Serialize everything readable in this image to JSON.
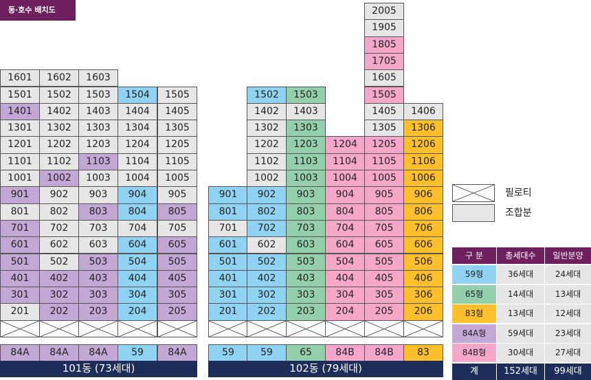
{
  "title": "동·호수 배치도",
  "colors": {
    "grey": "#e6e6e6",
    "purple": "#c3a8d6",
    "blue": "#8fd2f2",
    "green": "#93cfaa",
    "pink": "#f4a7c8",
    "yellow": "#fdbf2b",
    "navy": "#1c2d5a",
    "header": "#6e1f5e"
  },
  "units": [
    {
      "label": "1601",
      "col": 0,
      "row": 4,
      "color": "grey"
    },
    {
      "label": "1602",
      "col": 1,
      "row": 4,
      "color": "grey"
    },
    {
      "label": "1603",
      "col": 2,
      "row": 4,
      "color": "grey"
    },
    {
      "label": "1501",
      "col": 0,
      "row": 5,
      "color": "grey"
    },
    {
      "label": "1502",
      "col": 1,
      "row": 5,
      "color": "grey"
    },
    {
      "label": "1503",
      "col": 2,
      "row": 5,
      "color": "grey"
    },
    {
      "label": "1504",
      "col": 3,
      "row": 5,
      "color": "blue"
    },
    {
      "label": "1505",
      "col": 4,
      "row": 5,
      "color": "grey"
    },
    {
      "label": "1401",
      "col": 0,
      "row": 6,
      "color": "purple"
    },
    {
      "label": "1402",
      "col": 1,
      "row": 6,
      "color": "grey"
    },
    {
      "label": "1403",
      "col": 2,
      "row": 6,
      "color": "grey"
    },
    {
      "label": "1404",
      "col": 3,
      "row": 6,
      "color": "grey"
    },
    {
      "label": "1405",
      "col": 4,
      "row": 6,
      "color": "grey"
    },
    {
      "label": "1301",
      "col": 0,
      "row": 7,
      "color": "grey"
    },
    {
      "label": "1302",
      "col": 1,
      "row": 7,
      "color": "grey"
    },
    {
      "label": "1303",
      "col": 2,
      "row": 7,
      "color": "grey"
    },
    {
      "label": "1304",
      "col": 3,
      "row": 7,
      "color": "grey"
    },
    {
      "label": "1305",
      "col": 4,
      "row": 7,
      "color": "grey"
    },
    {
      "label": "1201",
      "col": 0,
      "row": 8,
      "color": "grey"
    },
    {
      "label": "1202",
      "col": 1,
      "row": 8,
      "color": "grey"
    },
    {
      "label": "1203",
      "col": 2,
      "row": 8,
      "color": "grey"
    },
    {
      "label": "1204",
      "col": 3,
      "row": 8,
      "color": "grey"
    },
    {
      "label": "1205",
      "col": 4,
      "row": 8,
      "color": "grey"
    },
    {
      "label": "1101",
      "col": 0,
      "row": 9,
      "color": "grey"
    },
    {
      "label": "1102",
      "col": 1,
      "row": 9,
      "color": "grey"
    },
    {
      "label": "1103",
      "col": 2,
      "row": 9,
      "color": "purple"
    },
    {
      "label": "1104",
      "col": 3,
      "row": 9,
      "color": "grey"
    },
    {
      "label": "1105",
      "col": 4,
      "row": 9,
      "color": "grey"
    },
    {
      "label": "1001",
      "col": 0,
      "row": 10,
      "color": "grey"
    },
    {
      "label": "1002",
      "col": 1,
      "row": 10,
      "color": "purple"
    },
    {
      "label": "1003",
      "col": 2,
      "row": 10,
      "color": "grey"
    },
    {
      "label": "1004",
      "col": 3,
      "row": 10,
      "color": "grey"
    },
    {
      "label": "1005",
      "col": 4,
      "row": 10,
      "color": "grey"
    },
    {
      "label": "901",
      "col": 0,
      "row": 11,
      "color": "purple"
    },
    {
      "label": "902",
      "col": 1,
      "row": 11,
      "color": "grey"
    },
    {
      "label": "903",
      "col": 2,
      "row": 11,
      "color": "grey"
    },
    {
      "label": "904",
      "col": 3,
      "row": 11,
      "color": "blue"
    },
    {
      "label": "905",
      "col": 4,
      "row": 11,
      "color": "grey"
    },
    {
      "label": "801",
      "col": 0,
      "row": 12,
      "color": "grey"
    },
    {
      "label": "802",
      "col": 1,
      "row": 12,
      "color": "grey"
    },
    {
      "label": "803",
      "col": 2,
      "row": 12,
      "color": "purple"
    },
    {
      "label": "804",
      "col": 3,
      "row": 12,
      "color": "blue"
    },
    {
      "label": "805",
      "col": 4,
      "row": 12,
      "color": "purple"
    },
    {
      "label": "701",
      "col": 0,
      "row": 13,
      "color": "purple"
    },
    {
      "label": "702",
      "col": 1,
      "row": 13,
      "color": "grey"
    },
    {
      "label": "703",
      "col": 2,
      "row": 13,
      "color": "grey"
    },
    {
      "label": "704",
      "col": 3,
      "row": 13,
      "color": "grey"
    },
    {
      "label": "705",
      "col": 4,
      "row": 13,
      "color": "grey"
    },
    {
      "label": "601",
      "col": 0,
      "row": 14,
      "color": "purple"
    },
    {
      "label": "602",
      "col": 1,
      "row": 14,
      "color": "grey"
    },
    {
      "label": "603",
      "col": 2,
      "row": 14,
      "color": "grey"
    },
    {
      "label": "604",
      "col": 3,
      "row": 14,
      "color": "blue"
    },
    {
      "label": "605",
      "col": 4,
      "row": 14,
      "color": "purple"
    },
    {
      "label": "501",
      "col": 0,
      "row": 15,
      "color": "purple"
    },
    {
      "label": "502",
      "col": 1,
      "row": 15,
      "color": "grey"
    },
    {
      "label": "503",
      "col": 2,
      "row": 15,
      "color": "purple"
    },
    {
      "label": "504",
      "col": 3,
      "row": 15,
      "color": "blue"
    },
    {
      "label": "505",
      "col": 4,
      "row": 15,
      "color": "purple"
    },
    {
      "label": "401",
      "col": 0,
      "row": 16,
      "color": "purple"
    },
    {
      "label": "402",
      "col": 1,
      "row": 16,
      "color": "purple"
    },
    {
      "label": "403",
      "col": 2,
      "row": 16,
      "color": "purple"
    },
    {
      "label": "404",
      "col": 3,
      "row": 16,
      "color": "blue"
    },
    {
      "label": "405",
      "col": 4,
      "row": 16,
      "color": "purple"
    },
    {
      "label": "301",
      "col": 0,
      "row": 17,
      "color": "purple"
    },
    {
      "label": "302",
      "col": 1,
      "row": 17,
      "color": "purple"
    },
    {
      "label": "303",
      "col": 2,
      "row": 17,
      "color": "purple"
    },
    {
      "label": "304",
      "col": 3,
      "row": 17,
      "color": "blue"
    },
    {
      "label": "305",
      "col": 4,
      "row": 17,
      "color": "purple"
    },
    {
      "label": "201",
      "col": 0,
      "row": 18,
      "color": "grey"
    },
    {
      "label": "202",
      "col": 1,
      "row": 18,
      "color": "purple"
    },
    {
      "label": "203",
      "col": 2,
      "row": 18,
      "color": "purple"
    },
    {
      "label": "204",
      "col": 3,
      "row": 18,
      "color": "blue"
    },
    {
      "label": "205",
      "col": 4,
      "row": 18,
      "color": "purple"
    },
    {
      "label": "2005",
      "col": 9,
      "row": 0,
      "color": "grey"
    },
    {
      "label": "1905",
      "col": 9,
      "row": 1,
      "color": "grey"
    },
    {
      "label": "1805",
      "col": 9,
      "row": 2,
      "color": "pink"
    },
    {
      "label": "1705",
      "col": 9,
      "row": 3,
      "color": "pink"
    },
    {
      "label": "1605",
      "col": 9,
      "row": 4,
      "color": "grey"
    },
    {
      "label": "1502",
      "col": 6,
      "row": 5,
      "color": "blue"
    },
    {
      "label": "1503",
      "col": 7,
      "row": 5,
      "color": "green"
    },
    {
      "label": "1505",
      "col": 9,
      "row": 5,
      "color": "pink"
    },
    {
      "label": "1402",
      "col": 6,
      "row": 6,
      "color": "grey"
    },
    {
      "label": "1403",
      "col": 7,
      "row": 6,
      "color": "grey"
    },
    {
      "label": "1405",
      "col": 9,
      "row": 6,
      "color": "grey"
    },
    {
      "label": "1406",
      "col": 10,
      "row": 6,
      "color": "grey"
    },
    {
      "label": "1302",
      "col": 6,
      "row": 7,
      "color": "grey"
    },
    {
      "label": "1303",
      "col": 7,
      "row": 7,
      "color": "green"
    },
    {
      "label": "1305",
      "col": 9,
      "row": 7,
      "color": "grey"
    },
    {
      "label": "1306",
      "col": 10,
      "row": 7,
      "color": "yellow"
    },
    {
      "label": "1202",
      "col": 6,
      "row": 8,
      "color": "grey"
    },
    {
      "label": "1203",
      "col": 7,
      "row": 8,
      "color": "green"
    },
    {
      "label": "1204",
      "col": 8,
      "row": 8,
      "color": "pink"
    },
    {
      "label": "1205",
      "col": 9,
      "row": 8,
      "color": "pink"
    },
    {
      "label": "1206",
      "col": 10,
      "row": 8,
      "color": "yellow"
    },
    {
      "label": "1102",
      "col": 6,
      "row": 9,
      "color": "grey"
    },
    {
      "label": "1103",
      "col": 7,
      "row": 9,
      "color": "green"
    },
    {
      "label": "1104",
      "col": 8,
      "row": 9,
      "color": "pink"
    },
    {
      "label": "1105",
      "col": 9,
      "row": 9,
      "color": "pink"
    },
    {
      "label": "1106",
      "col": 10,
      "row": 9,
      "color": "yellow"
    },
    {
      "label": "1002",
      "col": 6,
      "row": 10,
      "color": "grey"
    },
    {
      "label": "1003",
      "col": 7,
      "row": 10,
      "color": "green"
    },
    {
      "label": "1004",
      "col": 8,
      "row": 10,
      "color": "pink"
    },
    {
      "label": "1005",
      "col": 9,
      "row": 10,
      "color": "pink"
    },
    {
      "label": "1006",
      "col": 10,
      "row": 10,
      "color": "yellow"
    },
    {
      "label": "901",
      "col": 5,
      "row": 11,
      "color": "blue"
    },
    {
      "label": "902",
      "col": 6,
      "row": 11,
      "color": "blue"
    },
    {
      "label": "903",
      "col": 7,
      "row": 11,
      "color": "green"
    },
    {
      "label": "904",
      "col": 8,
      "row": 11,
      "color": "pink"
    },
    {
      "label": "905",
      "col": 9,
      "row": 11,
      "color": "pink"
    },
    {
      "label": "906",
      "col": 10,
      "row": 11,
      "color": "yellow"
    },
    {
      "label": "801",
      "col": 5,
      "row": 12,
      "color": "blue"
    },
    {
      "label": "802",
      "col": 6,
      "row": 12,
      "color": "blue"
    },
    {
      "label": "803",
      "col": 7,
      "row": 12,
      "color": "green"
    },
    {
      "label": "804",
      "col": 8,
      "row": 12,
      "color": "pink"
    },
    {
      "label": "805",
      "col": 9,
      "row": 12,
      "color": "pink"
    },
    {
      "label": "806",
      "col": 10,
      "row": 12,
      "color": "yellow"
    },
    {
      "label": "701",
      "col": 5,
      "row": 13,
      "color": "grey"
    },
    {
      "label": "702",
      "col": 6,
      "row": 13,
      "color": "blue"
    },
    {
      "label": "703",
      "col": 7,
      "row": 13,
      "color": "green"
    },
    {
      "label": "704",
      "col": 8,
      "row": 13,
      "color": "pink"
    },
    {
      "label": "705",
      "col": 9,
      "row": 13,
      "color": "pink"
    },
    {
      "label": "706",
      "col": 10,
      "row": 13,
      "color": "yellow"
    },
    {
      "label": "601",
      "col": 5,
      "row": 14,
      "color": "blue"
    },
    {
      "label": "602",
      "col": 6,
      "row": 14,
      "color": "grey"
    },
    {
      "label": "603",
      "col": 7,
      "row": 14,
      "color": "green"
    },
    {
      "label": "604",
      "col": 8,
      "row": 14,
      "color": "pink"
    },
    {
      "label": "605",
      "col": 9,
      "row": 14,
      "color": "pink"
    },
    {
      "label": "606",
      "col": 10,
      "row": 14,
      "color": "yellow"
    },
    {
      "label": "501",
      "col": 5,
      "row": 15,
      "color": "blue"
    },
    {
      "label": "502",
      "col": 6,
      "row": 15,
      "color": "blue"
    },
    {
      "label": "503",
      "col": 7,
      "row": 15,
      "color": "green"
    },
    {
      "label": "504",
      "col": 8,
      "row": 15,
      "color": "pink"
    },
    {
      "label": "505",
      "col": 9,
      "row": 15,
      "color": "pink"
    },
    {
      "label": "506",
      "col": 10,
      "row": 15,
      "color": "yellow"
    },
    {
      "label": "401",
      "col": 5,
      "row": 16,
      "color": "blue"
    },
    {
      "label": "402",
      "col": 6,
      "row": 16,
      "color": "blue"
    },
    {
      "label": "403",
      "col": 7,
      "row": 16,
      "color": "green"
    },
    {
      "label": "404",
      "col": 8,
      "row": 16,
      "color": "pink"
    },
    {
      "label": "405",
      "col": 9,
      "row": 16,
      "color": "pink"
    },
    {
      "label": "406",
      "col": 10,
      "row": 16,
      "color": "yellow"
    },
    {
      "label": "301",
      "col": 5,
      "row": 17,
      "color": "blue"
    },
    {
      "label": "302",
      "col": 6,
      "row": 17,
      "color": "blue"
    },
    {
      "label": "303",
      "col": 7,
      "row": 17,
      "color": "green"
    },
    {
      "label": "304",
      "col": 8,
      "row": 17,
      "color": "pink"
    },
    {
      "label": "305",
      "col": 9,
      "row": 17,
      "color": "pink"
    },
    {
      "label": "306",
      "col": 10,
      "row": 17,
      "color": "yellow"
    },
    {
      "label": "201",
      "col": 5,
      "row": 18,
      "color": "blue"
    },
    {
      "label": "202",
      "col": 6,
      "row": 18,
      "color": "blue"
    },
    {
      "label": "203",
      "col": 7,
      "row": 18,
      "color": "green"
    },
    {
      "label": "204",
      "col": 8,
      "row": 18,
      "color": "pink"
    },
    {
      "label": "205",
      "col": 9,
      "row": 18,
      "color": "pink"
    },
    {
      "label": "206",
      "col": 10,
      "row": 18,
      "color": "yellow"
    }
  ],
  "types": [
    {
      "label": "84A",
      "col": 0,
      "color": "purple"
    },
    {
      "label": "84A",
      "col": 1,
      "color": "purple"
    },
    {
      "label": "84A",
      "col": 2,
      "color": "purple"
    },
    {
      "label": "59",
      "col": 3,
      "color": "blue"
    },
    {
      "label": "84A",
      "col": 4,
      "color": "purple"
    },
    {
      "label": "59",
      "col": 5,
      "color": "blue"
    },
    {
      "label": "59",
      "col": 6,
      "color": "blue"
    },
    {
      "label": "65",
      "col": 7,
      "color": "green"
    },
    {
      "label": "84B",
      "col": 8,
      "color": "pink"
    },
    {
      "label": "84B",
      "col": 9,
      "color": "pink"
    },
    {
      "label": "83",
      "col": 10,
      "color": "yellow"
    }
  ],
  "buildings": [
    {
      "label": "101동 (73세대)",
      "fromCol": 0,
      "toCol": 4
    },
    {
      "label": "102동 (79세대)",
      "fromCol": 5,
      "toCol": 10
    }
  ],
  "legend": {
    "piloti": "필로티",
    "union": "조합분"
  },
  "summary": {
    "headers": [
      "구 분",
      "총세대수",
      "일반분양"
    ],
    "rows": [
      {
        "type": "59형",
        "total": "36세대",
        "general": "24세대",
        "color": "blue"
      },
      {
        "type": "65형",
        "total": "14세대",
        "general": "13세대",
        "color": "green"
      },
      {
        "type": "83형",
        "total": "13세대",
        "general": "12세대",
        "color": "yellow"
      },
      {
        "type": "84A형",
        "total": "59세대",
        "general": "23세대",
        "color": "purple"
      },
      {
        "type": "84B형",
        "total": "30세대",
        "general": "27세대",
        "color": "pink"
      }
    ],
    "total": {
      "label": "계",
      "total": "152세대",
      "general": "99세대"
    }
  }
}
